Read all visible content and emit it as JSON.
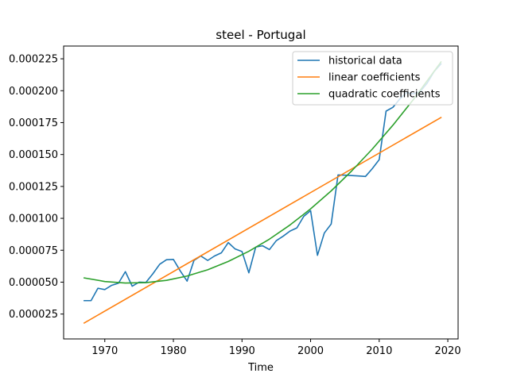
{
  "chart_data": {
    "type": "line",
    "title": "steel - Portugal",
    "xlabel": "Time",
    "ylabel": "",
    "xlim": [
      1964,
      2021.5
    ],
    "ylim": [
      5.5e-06,
      0.000235
    ],
    "xticks": [
      1970,
      1980,
      1990,
      2000,
      2010,
      2020
    ],
    "xtick_labels": [
      "1970",
      "1980",
      "1990",
      "2000",
      "2010",
      "2020"
    ],
    "yticks": [
      2.5e-05,
      5e-05,
      7.5e-05,
      0.0001,
      0.000125,
      0.00015,
      0.000175,
      0.0002,
      0.000225
    ],
    "ytick_labels": [
      "0.000025",
      "0.000050",
      "0.000075",
      "0.000100",
      "0.000125",
      "0.000150",
      "0.000175",
      "0.000200",
      "0.000225"
    ],
    "legend_position": "top-right",
    "grid": false,
    "series": [
      {
        "name": "historical data",
        "color": "#1f77b4",
        "x": [
          1967,
          1968,
          1969,
          1970,
          1971,
          1972,
          1973,
          1974,
          1975,
          1976,
          1977,
          1978,
          1979,
          1980,
          1981,
          1982,
          1983,
          1984,
          1985,
          1986,
          1987,
          1988,
          1989,
          1990,
          1991,
          1992,
          1993,
          1994,
          1995,
          1996,
          1997,
          1998,
          1999,
          2000,
          2001,
          2002,
          2003,
          2004,
          2005,
          2006,
          2007,
          2008,
          2009,
          2010,
          2011,
          2012,
          2013,
          2014,
          2015,
          2016,
          2017,
          2018,
          2019
        ],
        "y": [
          3.55e-05,
          3.55e-05,
          4.52e-05,
          4.42e-05,
          4.75e-05,
          4.92e-05,
          5.82e-05,
          4.68e-05,
          5e-05,
          4.98e-05,
          5.65e-05,
          6.4e-05,
          6.76e-05,
          6.78e-05,
          5.88e-05,
          5.08e-05,
          6.7e-05,
          7.05e-05,
          6.7e-05,
          7.05e-05,
          7.3e-05,
          8.1e-05,
          7.6e-05,
          7.4e-05,
          5.73e-05,
          7.75e-05,
          7.85e-05,
          7.55e-05,
          8.25e-05,
          8.6e-05,
          9e-05,
          9.25e-05,
          0.0001015,
          0.000106,
          7.1e-05,
          8.85e-05,
          9.55e-05,
          0.000134,
          0.0001338,
          0.0001335,
          0.0001332,
          0.0001328,
          0.000139,
          0.000146,
          0.000184,
          0.000187,
          0.0001935,
          0.0001985,
          0.0001975,
          0.0001995,
          0.000206,
          0.000215,
          0.000221
        ]
      },
      {
        "name": "linear coefficients",
        "color": "#ff7f0e",
        "x": [
          1967,
          2019
        ],
        "y": [
          1.8e-05,
          0.000179
        ]
      },
      {
        "name": "quadratic coefficients",
        "color": "#2ca02c",
        "x": [
          1967,
          1970,
          1973,
          1976,
          1979,
          1982,
          1985,
          1988,
          1991,
          1994,
          1997,
          2000,
          2003,
          2006,
          2009,
          2012,
          2015,
          2019
        ],
        "y": [
          5.33e-05,
          5.05e-05,
          4.93e-05,
          4.96e-05,
          5.14e-05,
          5.48e-05,
          5.97e-05,
          6.62e-05,
          7.42e-05,
          8.37e-05,
          9.48e-05,
          0.0001074,
          0.0001215,
          0.0001372,
          0.0001543,
          0.000173,
          0.0001932,
          0.0002225
        ]
      }
    ]
  }
}
